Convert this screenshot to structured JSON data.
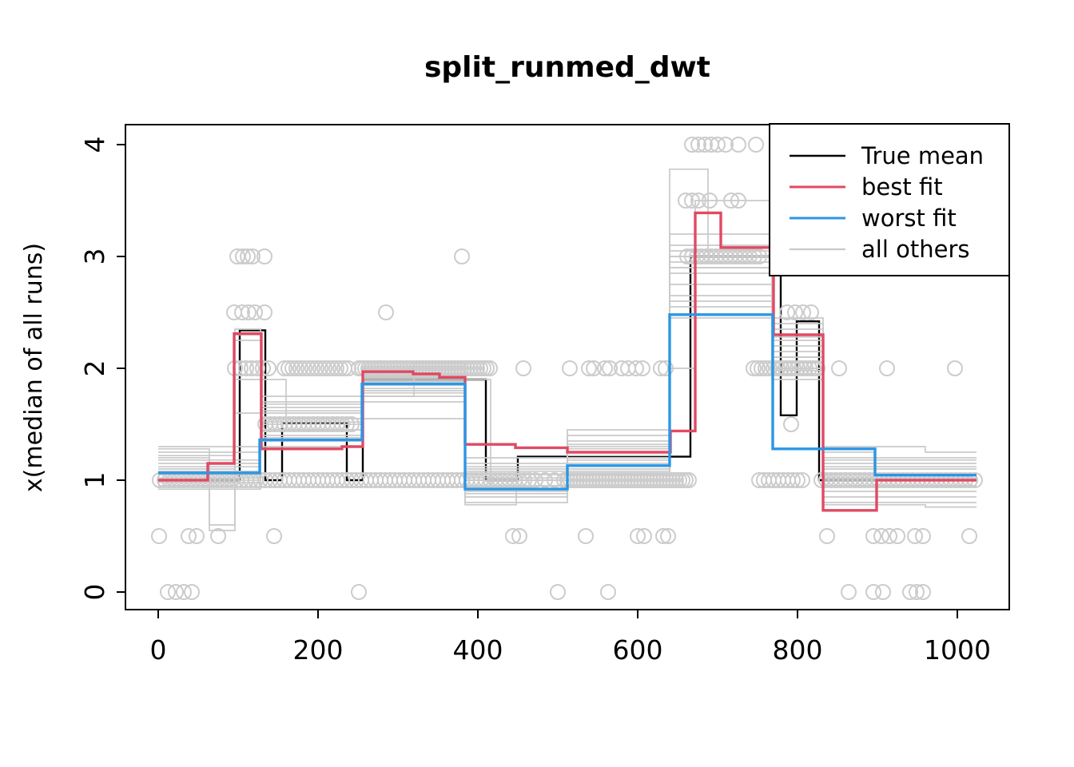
{
  "chart_data": {
    "type": "line",
    "subtype": "step-ensemble",
    "title": "split_runmed_dwt",
    "xlabel": "",
    "ylabel": "x(median of all runs)",
    "xlim": [
      0,
      1024
    ],
    "ylim": [
      0,
      4
    ],
    "x_ticks": [
      0,
      200,
      400,
      600,
      800,
      1000
    ],
    "y_ticks": [
      0,
      1,
      2,
      3,
      4
    ],
    "grid": false,
    "colors": {
      "true_mean": "#000000",
      "best_fit": "#E04A63",
      "worst_fit": "#2B96E5",
      "all_others": "#C9C9C9",
      "points": "#CCCCCC",
      "box": "#000000",
      "background": "#ffffff"
    },
    "legend": {
      "position": "top-right",
      "entries": [
        {
          "label": "True mean",
          "color": "#000000"
        },
        {
          "label": "best fit",
          "color": "#E04A63"
        },
        {
          "label": "worst fit",
          "color": "#2B96E5"
        },
        {
          "label": "all others",
          "color": "#C9C9C9"
        }
      ]
    },
    "series": {
      "true_mean": {
        "name": "True mean",
        "x": [
          0,
          102,
          134,
          155,
          236,
          256,
          410,
          450,
          666,
          779,
          799,
          827,
          1024
        ],
        "v": [
          1.0,
          2.34,
          1.0,
          1.51,
          1.0,
          1.9,
          1.0,
          1.21,
          3.0,
          1.58,
          2.42,
          1.0
        ]
      },
      "best_fit": {
        "name": "best fit",
        "x": [
          0,
          62,
          95,
          129,
          230,
          256,
          319,
          352,
          384,
          447,
          512,
          641,
          672,
          704,
          770,
          832,
          899,
          1024
        ],
        "v": [
          1.0,
          1.15,
          2.31,
          1.28,
          1.3,
          1.97,
          1.95,
          1.92,
          1.32,
          1.29,
          1.25,
          1.44,
          3.39,
          3.08,
          2.3,
          0.73,
          1.0
        ]
      },
      "worst_fit": {
        "name": "worst fit",
        "x": [
          0,
          127,
          255,
          384,
          512,
          640,
          769,
          897,
          1024
        ],
        "v": [
          1.065,
          1.36,
          1.86,
          0.92,
          1.13,
          2.48,
          1.28,
          1.045
        ]
      },
      "all_others": [
        {
          "x": [
            0,
            128,
            256,
            384,
            512,
            640,
            768,
            832,
            1024
          ],
          "v": [
            1.05,
            1.45,
            1.9,
            1.0,
            1.2,
            2.9,
            2.1,
            1.05
          ]
        },
        {
          "x": [
            0,
            96,
            128,
            256,
            384,
            512,
            640,
            768,
            832,
            1024
          ],
          "v": [
            1.1,
            2.3,
            1.55,
            1.95,
            0.95,
            1.3,
            3.0,
            2.0,
            0.95
          ]
        },
        {
          "x": [
            0,
            128,
            256,
            384,
            512,
            640,
            768,
            832,
            1024
          ],
          "v": [
            0.98,
            1.35,
            1.8,
            1.05,
            1.15,
            2.6,
            2.2,
            1.1
          ]
        },
        {
          "x": [
            0,
            64,
            96,
            256,
            384,
            512,
            640,
            768,
            832,
            1024
          ],
          "v": [
            1.2,
            0.55,
            1.6,
            2.0,
            0.85,
            1.25,
            2.95,
            2.35,
            0.85
          ]
        },
        {
          "x": [
            0,
            128,
            256,
            384,
            512,
            640,
            768,
            832,
            1024
          ],
          "v": [
            1.25,
            1.7,
            1.75,
            1.1,
            1.05,
            3.05,
            1.95,
            1.15
          ]
        },
        {
          "x": [
            0,
            128,
            256,
            384,
            512,
            640,
            768,
            832,
            1024
          ],
          "v": [
            1.0,
            1.5,
            1.88,
            0.9,
            1.35,
            2.45,
            2.4,
            0.9
          ]
        },
        {
          "x": [
            0,
            128,
            256,
            384,
            512,
            640,
            768,
            832,
            1024
          ],
          "v": [
            1.15,
            1.4,
            1.92,
            1.15,
            1.1,
            2.85,
            2.05,
            1.2
          ]
        },
        {
          "x": [
            0,
            96,
            128,
            256,
            384,
            512,
            640,
            768,
            832,
            1024
          ],
          "v": [
            0.95,
            2.25,
            1.65,
            1.85,
            1.0,
            1.4,
            3.1,
            2.15,
            1.0
          ]
        },
        {
          "x": [
            0,
            128,
            384,
            512,
            640,
            672,
            768,
            832,
            1024
          ],
          "v": [
            1.3,
            1.55,
            0.8,
            1.2,
            2.0,
            3.5,
            2.25,
            0.8
          ]
        },
        {
          "x": [
            0,
            128,
            320,
            384,
            416,
            512,
            640,
            768,
            832,
            960,
            1024
          ],
          "v": [
            1.08,
            1.75,
            2.05,
            1.9,
            0.95,
            1.28,
            2.75,
            1.9,
            1.3,
            1.25
          ]
        },
        {
          "x": [
            0,
            128,
            256,
            384,
            512,
            640,
            688,
            768,
            832,
            960,
            1024
          ],
          "v": [
            0.92,
            1.3,
            1.7,
            1.2,
            1.0,
            3.78,
            2.95,
            2.3,
            0.78,
            0.76
          ]
        },
        {
          "x": [
            0,
            128,
            256,
            384,
            512,
            640,
            768,
            832,
            896,
            1024
          ],
          "v": [
            1.18,
            1.52,
            1.98,
            1.08,
            1.18,
            2.55,
            2.0,
            1.25,
            1.05
          ]
        },
        {
          "x": [
            0,
            128,
            256,
            384,
            448,
            512,
            640,
            768,
            832,
            1024
          ],
          "v": [
            1.02,
            1.62,
            1.82,
            0.78,
            0.95,
            1.32,
            3.0,
            2.45,
            0.95
          ]
        },
        {
          "x": [
            0,
            96,
            160,
            256,
            384,
            512,
            640,
            768,
            832,
            1024
          ],
          "v": [
            1.22,
            1.9,
            1.45,
            1.93,
            1.02,
            1.22,
            2.9,
            2.1,
            1.12
          ]
        },
        {
          "x": [
            0,
            128,
            256,
            384,
            512,
            640,
            768,
            832,
            1024
          ],
          "v": [
            1.12,
            1.68,
            1.78,
            0.88,
            1.08,
            3.2,
            2.28,
            1.02
          ]
        },
        {
          "x": [
            0,
            64,
            96,
            128,
            256,
            384,
            512,
            640,
            768,
            832,
            1024
          ],
          "v": [
            1.28,
            0.6,
            2.35,
            1.38,
            2.02,
            1.12,
            1.45,
            2.65,
            1.98,
            1.18
          ]
        }
      ]
    },
    "points": {
      "radius": 9,
      "singles": [
        {
          "y": 0,
          "xs": [
            12,
            22,
            32,
            42,
            251,
            500,
            563,
            864,
            895,
            907,
            941,
            949,
            957
          ]
        },
        {
          "y": 0.5,
          "xs": [
            1,
            38,
            48,
            75,
            145,
            444,
            452,
            535,
            600,
            608,
            632,
            638,
            837,
            895,
            905,
            915,
            925,
            947,
            957,
            1015
          ]
        },
        {
          "y": 1.5,
          "xs": [
            792
          ]
        },
        {
          "y": 2,
          "xs": [
            457,
            515,
            539,
            545,
            559,
            565,
            580,
            588,
            598,
            606,
            629,
            635,
            852,
            912,
            997
          ]
        },
        {
          "y": 2.5,
          "xs": [
            95,
            105,
            113,
            121,
            133,
            285,
            787,
            797,
            807,
            817
          ]
        },
        {
          "y": 3,
          "xs": [
            99,
            106,
            112,
            118,
            133,
            380
          ]
        },
        {
          "y": 3.5,
          "xs": [
            660,
            668,
            676,
            690,
            717,
            726
          ]
        },
        {
          "y": 4,
          "xs": [
            668,
            676,
            684,
            692,
            700,
            710,
            726,
            748
          ]
        }
      ],
      "runs": [
        {
          "y": 1,
          "from": 2,
          "to": 465,
          "dx": 6
        },
        {
          "y": 1,
          "from": 472,
          "to": 508,
          "dx": 12
        },
        {
          "y": 1,
          "from": 512,
          "to": 664,
          "dx": 4
        },
        {
          "y": 1,
          "from": 752,
          "to": 810,
          "dx": 6
        },
        {
          "y": 1,
          "from": 830,
          "to": 1022,
          "dx": 6
        },
        {
          "y": 1.5,
          "from": 134,
          "to": 246,
          "dx": 6
        },
        {
          "y": 2,
          "from": 96,
          "to": 138,
          "dx": 7
        },
        {
          "y": 2,
          "from": 158,
          "to": 238,
          "dx": 5
        },
        {
          "y": 2,
          "from": 251,
          "to": 418,
          "dx": 4
        },
        {
          "y": 2,
          "from": 745,
          "to": 829,
          "dx": 5
        },
        {
          "y": 3,
          "from": 662,
          "to": 756,
          "dx": 6
        }
      ]
    }
  }
}
